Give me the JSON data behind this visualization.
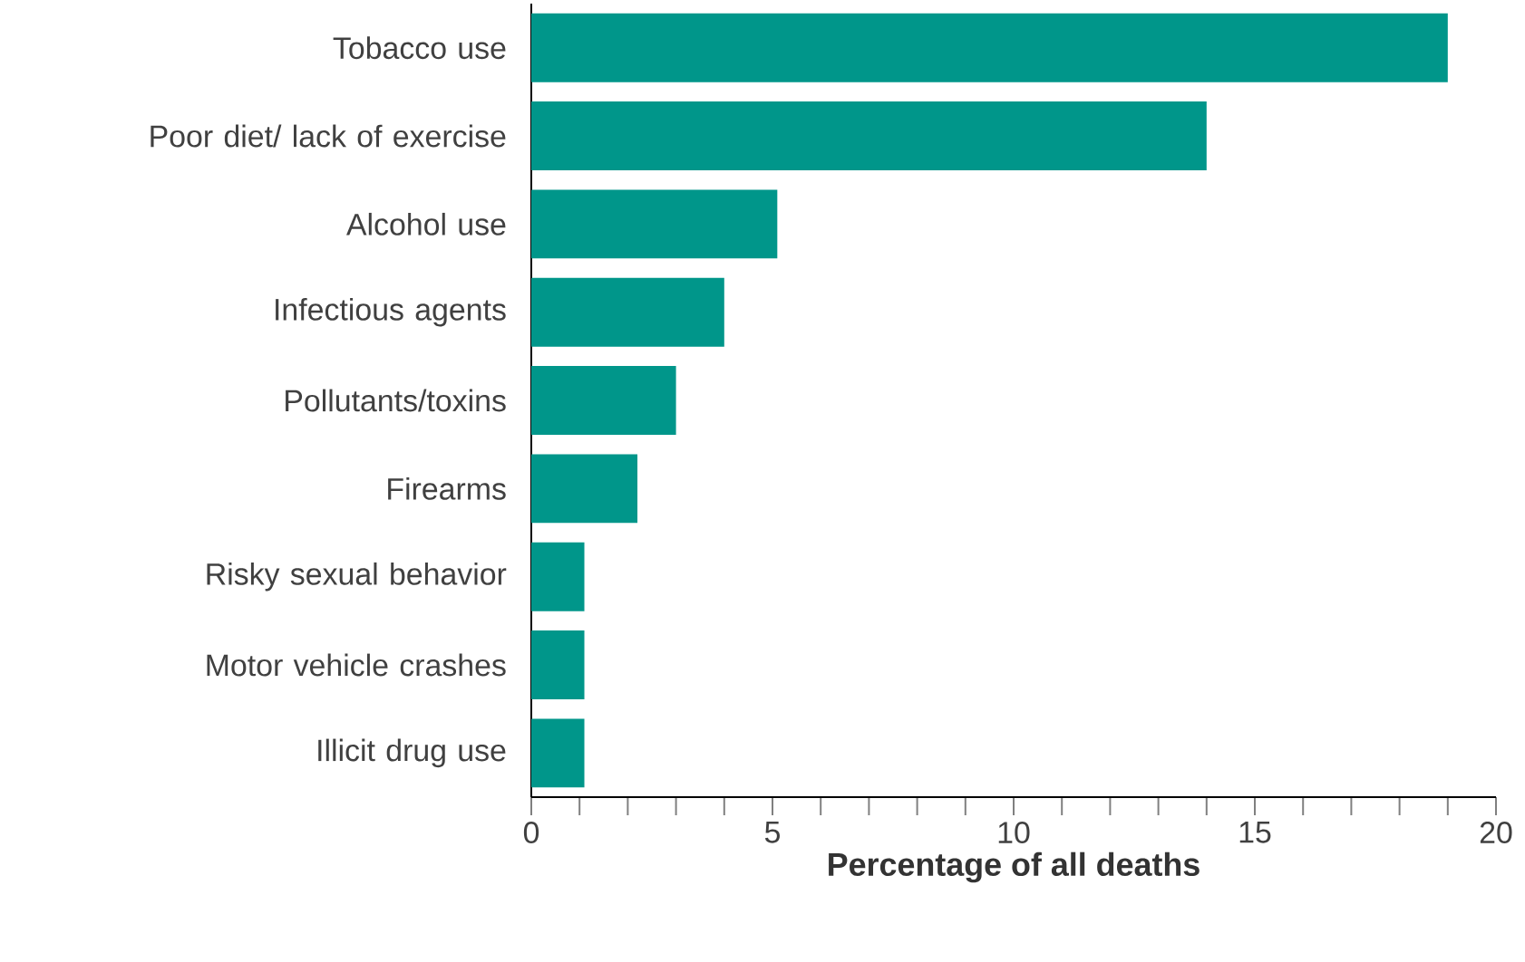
{
  "chart_data": {
    "type": "bar",
    "orientation": "horizontal",
    "xlabel": "Percentage of all deaths",
    "categories": [
      "Tobacco use",
      "Poor diet/ lack of exercise",
      "Alcohol use",
      "Infectious agents",
      "Pollutants/toxins",
      "Firearms",
      "Risky sexual behavior",
      "Motor vehicle crashes",
      "Illicit drug use"
    ],
    "values": [
      19,
      14,
      5.1,
      4,
      3,
      2.2,
      1.1,
      1.1,
      1.1
    ],
    "color": "#00968a",
    "xlim": [
      0,
      20
    ],
    "xticks": [
      0,
      {
        "value": 1,
        "label": null
      },
      {
        "value": 2,
        "label": null
      },
      {
        "value": 3,
        "label": null
      },
      {
        "value": 4,
        "label": null
      },
      5,
      {
        "value": 6,
        "label": null
      },
      {
        "value": 7,
        "label": null
      },
      {
        "value": 8,
        "label": null
      },
      {
        "value": 9,
        "label": null
      },
      10,
      {
        "value": 11,
        "label": null
      },
      {
        "value": 12,
        "label": null
      },
      {
        "value": 13,
        "label": null
      },
      {
        "value": 14,
        "label": null
      },
      15,
      {
        "value": 16,
        "label": null
      },
      {
        "value": 17,
        "label": null
      },
      {
        "value": 18,
        "label": null
      },
      {
        "value": 19,
        "label": null
      },
      20
    ]
  }
}
